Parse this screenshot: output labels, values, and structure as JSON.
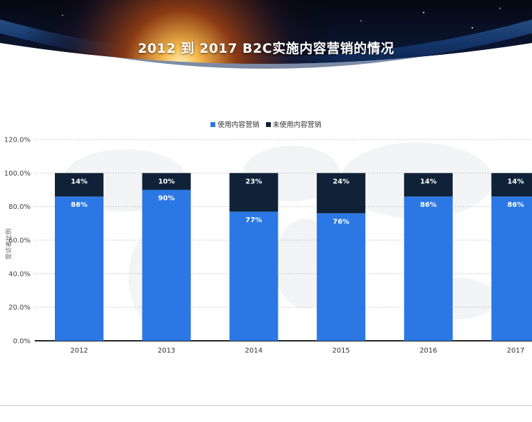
{
  "title": "2012 到 2017 B2C实施内容营销的情况",
  "colors": {
    "used": "#2b78e4",
    "not_used": "#0f2238",
    "grid": "#c9c9c9",
    "axis": "#222222"
  },
  "chart_data": {
    "type": "bar",
    "stacked": true,
    "categories": [
      "2012",
      "2013",
      "2014",
      "2015",
      "2016",
      "2017"
    ],
    "series": [
      {
        "name": "使用内容营销",
        "values": [
          86,
          90,
          77,
          76,
          86,
          86
        ],
        "labels": [
          "86%",
          "90%",
          "77%",
          "76%",
          "86%",
          "86%"
        ]
      },
      {
        "name": "未使用内容营销",
        "values": [
          14,
          10,
          23,
          24,
          14,
          14
        ],
        "labels": [
          "14%",
          "10%",
          "23%",
          "24%",
          "14%",
          "14%"
        ]
      }
    ],
    "ylim": [
      0,
      120
    ],
    "yticks": [
      "0.0%",
      "20.0%",
      "40.0%",
      "60.0%",
      "80.0%",
      "100.0%",
      "120.0%"
    ],
    "ylabel": "受访者比例",
    "grid": true,
    "legend": "top-center"
  }
}
